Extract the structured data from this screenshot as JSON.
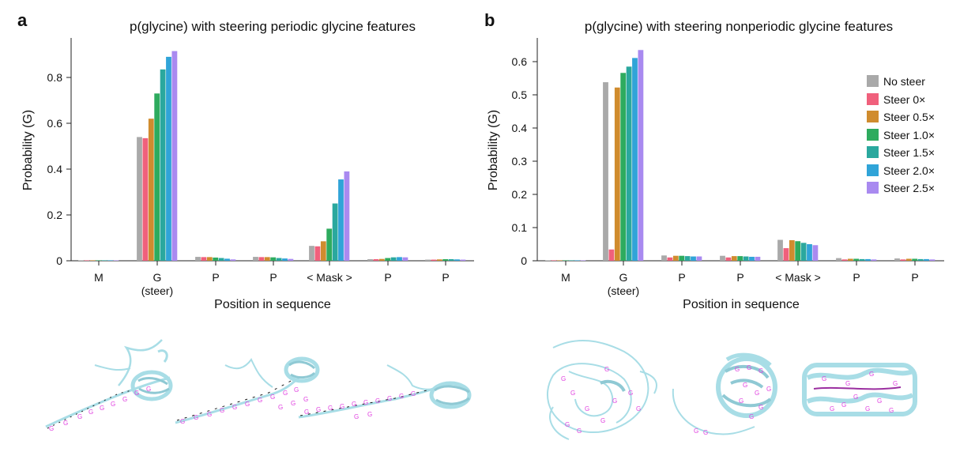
{
  "panels": [
    {
      "letter": "a",
      "title": "p(glycine) with steering periodic glycine features",
      "xlabel": "Position in sequence",
      "ylabel": "Probability (G)",
      "yticks": [
        "0",
        "0.2",
        "0.4",
        "0.6",
        "0.8"
      ],
      "categories": [
        {
          "label": "M",
          "sublabel": ""
        },
        {
          "label": "G",
          "sublabel": "(steer)"
        },
        {
          "label": "P",
          "sublabel": ""
        },
        {
          "label": "P",
          "sublabel": ""
        },
        {
          "label": "< Mask >",
          "sublabel": ""
        },
        {
          "label": "P",
          "sublabel": ""
        },
        {
          "label": "P",
          "sublabel": ""
        }
      ]
    },
    {
      "letter": "b",
      "title": "p(glycine) with steering nonperiodic glycine features",
      "xlabel": "Position in sequence",
      "ylabel": "Probability (G)",
      "yticks": [
        "0",
        "0.1",
        "0.2",
        "0.3",
        "0.4",
        "0.5",
        "0.6"
      ],
      "categories": [
        {
          "label": "M",
          "sublabel": ""
        },
        {
          "label": "G",
          "sublabel": "(steer)"
        },
        {
          "label": "P",
          "sublabel": ""
        },
        {
          "label": "P",
          "sublabel": ""
        },
        {
          "label": "< Mask >",
          "sublabel": ""
        },
        {
          "label": "P",
          "sublabel": ""
        },
        {
          "label": "P",
          "sublabel": ""
        }
      ]
    }
  ],
  "legend": [
    "No steer",
    "Steer 0×",
    "Steer 0.5×",
    "Steer 1.0×",
    "Steer 1.5×",
    "Steer 2.0×",
    "Steer 2.5×"
  ],
  "series_colors": [
    "#a9a9a9",
    "#f0607c",
    "#d08c2e",
    "#2eab5e",
    "#2aa89e",
    "#30a4d8",
    "#a98af0"
  ],
  "structures": {
    "glycine_letter": "G",
    "ribbon_color": "#a8dde6",
    "glycine_color": "#e040e0"
  },
  "chart_data": [
    {
      "type": "bar",
      "title": "p(glycine) with steering periodic glycine features",
      "xlabel": "Position in sequence",
      "ylabel": "Probability (G)",
      "categories": [
        "M",
        "G\n(steer)",
        "P",
        "P",
        "< Mask >",
        "P",
        "P"
      ],
      "ylim": [
        0,
        0.95
      ],
      "grid": false,
      "series": [
        {
          "name": "No steer",
          "values": [
            0.0,
            0.54,
            0.017,
            0.017,
            0.065,
            0.007,
            0.005
          ]
        },
        {
          "name": "Steer 0×",
          "values": [
            0.0,
            0.535,
            0.016,
            0.016,
            0.063,
            0.007,
            0.005
          ]
        },
        {
          "name": "Steer 0.5×",
          "values": [
            0.0,
            0.62,
            0.016,
            0.016,
            0.085,
            0.008,
            0.006
          ]
        },
        {
          "name": "Steer 1.0×",
          "values": [
            0.0,
            0.73,
            0.014,
            0.015,
            0.14,
            0.012,
            0.007
          ]
        },
        {
          "name": "Steer 1.5×",
          "values": [
            0.0,
            0.835,
            0.012,
            0.012,
            0.25,
            0.015,
            0.007
          ]
        },
        {
          "name": "Steer 2.0×",
          "values": [
            0.0,
            0.89,
            0.009,
            0.01,
            0.355,
            0.016,
            0.006
          ]
        },
        {
          "name": "Steer 2.5×",
          "values": [
            0.0,
            0.915,
            0.006,
            0.008,
            0.39,
            0.015,
            0.005
          ]
        }
      ]
    },
    {
      "type": "bar",
      "title": "p(glycine) with steering nonperiodic glycine features",
      "xlabel": "Position in sequence",
      "ylabel": "Probability (G)",
      "categories": [
        "M",
        "G\n(steer)",
        "P",
        "P",
        "< Mask >",
        "P",
        "P"
      ],
      "ylim": [
        0,
        0.67
      ],
      "grid": false,
      "legend_position": "right",
      "series": [
        {
          "name": "No steer",
          "values": [
            0.0,
            0.538,
            0.016,
            0.015,
            0.063,
            0.008,
            0.007
          ]
        },
        {
          "name": "Steer 0×",
          "values": [
            0.0,
            0.034,
            0.01,
            0.01,
            0.038,
            0.004,
            0.004
          ]
        },
        {
          "name": "Steer 0.5×",
          "values": [
            0.0,
            0.522,
            0.015,
            0.014,
            0.062,
            0.006,
            0.006
          ]
        },
        {
          "name": "Steer 1.0×",
          "values": [
            0.0,
            0.566,
            0.015,
            0.014,
            0.059,
            0.006,
            0.006
          ]
        },
        {
          "name": "Steer 1.5×",
          "values": [
            0.0,
            0.585,
            0.014,
            0.013,
            0.054,
            0.005,
            0.005
          ]
        },
        {
          "name": "Steer 2.0×",
          "values": [
            0.0,
            0.611,
            0.013,
            0.012,
            0.05,
            0.005,
            0.005
          ]
        },
        {
          "name": "Steer 2.5×",
          "values": [
            0.0,
            0.635,
            0.013,
            0.012,
            0.047,
            0.004,
            0.004
          ]
        }
      ]
    }
  ]
}
